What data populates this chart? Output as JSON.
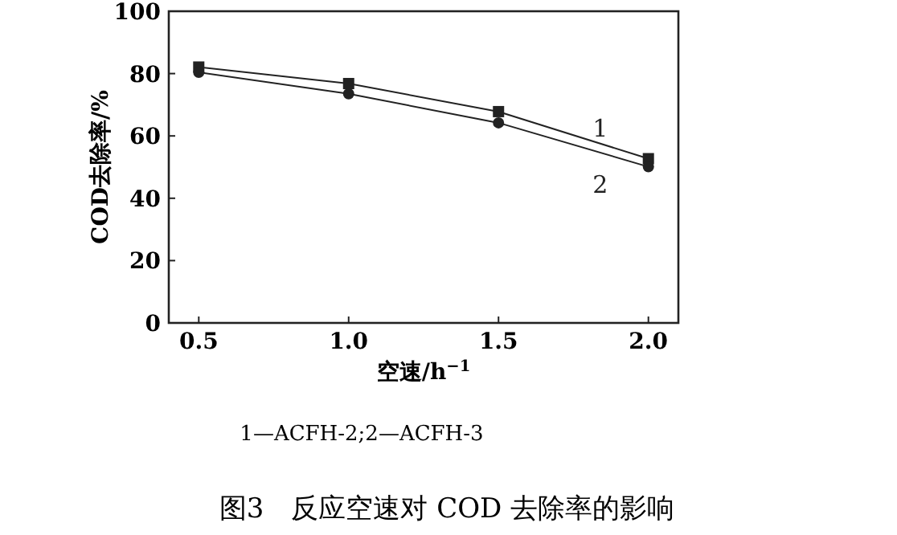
{
  "chart_data": {
    "type": "line",
    "title": "图3　反应空速对 COD 去除率的影响",
    "xlabel": "空速/h$^{−1}$",
    "ylabel": "COD去除率/%",
    "annotations": [
      "1—ACFH-2;2—ACFH-3"
    ],
    "x": [
      0.5,
      1.0,
      1.5,
      2.0
    ],
    "series": [
      {
        "name": "1",
        "color": "#222222",
        "marker": "square",
        "values": [
          82.1,
          76.8,
          67.8,
          52.7
        ]
      },
      {
        "name": "2",
        "color": "#222222",
        "marker": "circle",
        "values": [
          80.4,
          73.5,
          64.2,
          50.1
        ]
      }
    ],
    "xlim": [
      0.4,
      2.1
    ],
    "xticks": [
      0.5,
      {
        "value": 1,
        "label": "1.0"
      },
      1.5,
      {
        "value": 2,
        "label": "2.0"
      }
    ],
    "ylim": [
      0,
      100
    ],
    "yticks": [
      0,
      20,
      40,
      60,
      80,
      100
    ],
    "grid": false,
    "legend": false,
    "line_style": "solid"
  }
}
